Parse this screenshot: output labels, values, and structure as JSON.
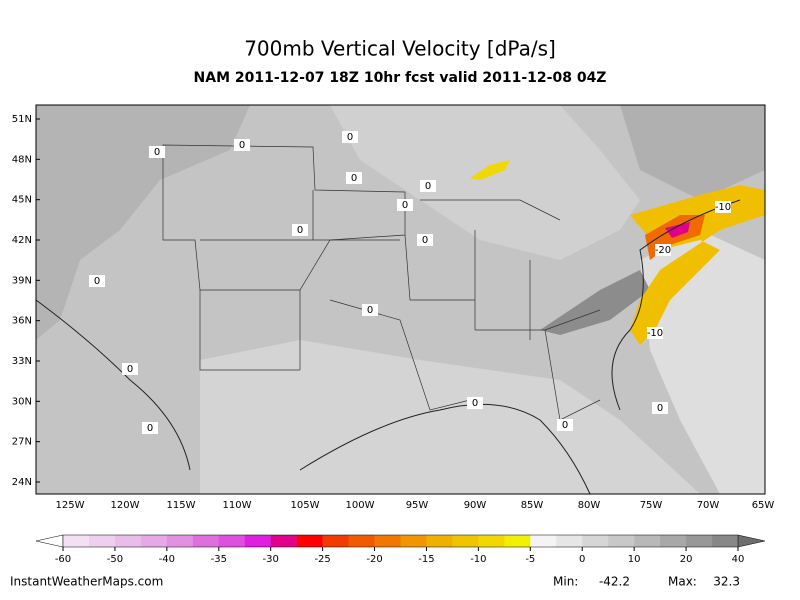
{
  "header": {
    "title": "700mb Vertical Velocity [dPa/s]",
    "subtitle": "NAM 2011-12-07 18Z 10hr fcst valid 2011-12-08 04Z"
  },
  "map": {
    "lat_labels": [
      "51N",
      "48N",
      "45N",
      "42N",
      "39N",
      "36N",
      "33N",
      "30N",
      "27N",
      "24N"
    ],
    "lon_labels": [
      "125W",
      "120W",
      "115W",
      "110W",
      "105W",
      "100W",
      "95W",
      "90W",
      "85W",
      "80W",
      "75W",
      "70W",
      "65W"
    ],
    "contour_labels": [
      "0",
      "0",
      "0",
      "0",
      "0",
      "0",
      "0",
      "0",
      "0",
      "0",
      "0",
      "0",
      "-10",
      "-20",
      "-10",
      "0",
      "0",
      "0"
    ]
  },
  "colorbar": {
    "ticks": [
      -60,
      -50,
      -40,
      -35,
      -30,
      -25,
      -20,
      -15,
      -10,
      -5,
      0,
      10,
      20,
      40
    ],
    "colors": [
      "#f4e0f4",
      "#eed0ee",
      "#eabcea",
      "#e6a8e6",
      "#e290e2",
      "#de70de",
      "#e050e0",
      "#e020e0",
      "#e0008c",
      "#ff0000",
      "#f03c00",
      "#f05a00",
      "#f07800",
      "#f09600",
      "#f0b000",
      "#f0c400",
      "#f0d800",
      "#f0f000",
      "#f4f4f4",
      "#e6e6e6",
      "#d6d6d6",
      "#c8c8c8",
      "#b8b8b8",
      "#a8a8a8",
      "#989898",
      "#888888"
    ],
    "below_color": "#ffffff",
    "above_color": "#6e6e6e"
  },
  "footer": {
    "source": "InstantWeatherMaps.com",
    "min_label": "Min:",
    "min": -42.2,
    "max_label": "Max:",
    "max": 32.3
  }
}
